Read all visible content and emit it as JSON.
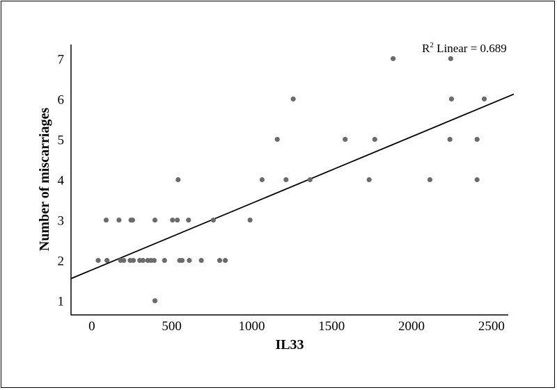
{
  "chart_data": {
    "type": "scatter",
    "title": "",
    "xlabel": "IL33",
    "ylabel": "Number of miscarriages",
    "xlim": [
      -130,
      2640
    ],
    "ylim": [
      0.65,
      7.35
    ],
    "x_ticks": [
      0,
      500,
      1000,
      1500,
      2000,
      2500
    ],
    "y_ticks": [
      1,
      2,
      3,
      4,
      5,
      6,
      7
    ],
    "grid": false,
    "legend": "none",
    "annotation": {
      "prefix": "R",
      "sup": "2",
      "suffix": " Linear = 0.689"
    },
    "fit_line": {
      "x": [
        -130,
        2640
      ],
      "y": [
        1.55,
        6.12
      ]
    },
    "point_color": "#6b6b6b",
    "points": [
      {
        "x": 40,
        "y": 2
      },
      {
        "x": 90,
        "y": 3
      },
      {
        "x": 95,
        "y": 2
      },
      {
        "x": 170,
        "y": 3
      },
      {
        "x": 180,
        "y": 2
      },
      {
        "x": 200,
        "y": 2
      },
      {
        "x": 240,
        "y": 2
      },
      {
        "x": 245,
        "y": 3
      },
      {
        "x": 255,
        "y": 3
      },
      {
        "x": 260,
        "y": 2
      },
      {
        "x": 300,
        "y": 2
      },
      {
        "x": 320,
        "y": 2
      },
      {
        "x": 350,
        "y": 2
      },
      {
        "x": 370,
        "y": 2
      },
      {
        "x": 390,
        "y": 2
      },
      {
        "x": 395,
        "y": 3
      },
      {
        "x": 395,
        "y": 1
      },
      {
        "x": 455,
        "y": 2
      },
      {
        "x": 505,
        "y": 3
      },
      {
        "x": 535,
        "y": 3
      },
      {
        "x": 540,
        "y": 4
      },
      {
        "x": 550,
        "y": 2
      },
      {
        "x": 565,
        "y": 2
      },
      {
        "x": 605,
        "y": 3
      },
      {
        "x": 610,
        "y": 2
      },
      {
        "x": 685,
        "y": 2
      },
      {
        "x": 760,
        "y": 3
      },
      {
        "x": 800,
        "y": 2
      },
      {
        "x": 835,
        "y": 2
      },
      {
        "x": 990,
        "y": 3
      },
      {
        "x": 1065,
        "y": 4
      },
      {
        "x": 1160,
        "y": 5
      },
      {
        "x": 1215,
        "y": 4
      },
      {
        "x": 1260,
        "y": 6
      },
      {
        "x": 1365,
        "y": 4
      },
      {
        "x": 1585,
        "y": 5
      },
      {
        "x": 1735,
        "y": 4
      },
      {
        "x": 1770,
        "y": 5
      },
      {
        "x": 1885,
        "y": 7
      },
      {
        "x": 2115,
        "y": 4
      },
      {
        "x": 2240,
        "y": 5
      },
      {
        "x": 2245,
        "y": 7
      },
      {
        "x": 2250,
        "y": 6
      },
      {
        "x": 2410,
        "y": 5
      },
      {
        "x": 2410,
        "y": 4
      },
      {
        "x": 2455,
        "y": 6
      }
    ]
  }
}
